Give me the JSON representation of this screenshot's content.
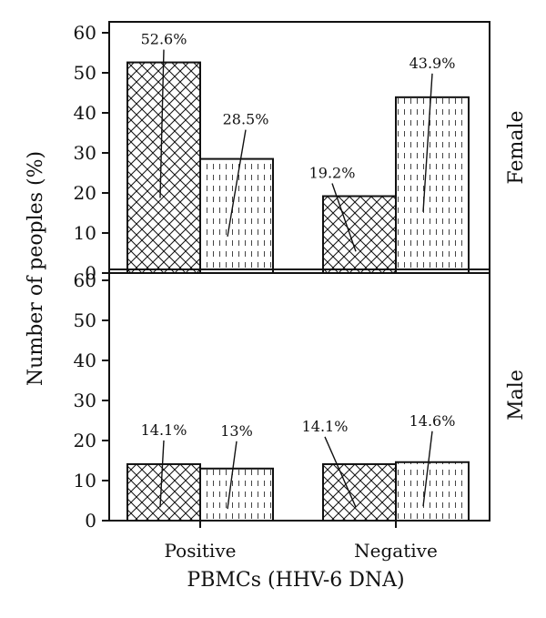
{
  "chart_data": {
    "type": "bar",
    "xlabel": "PBMCs (HHV-6 DNA)",
    "ylabel": "Number of peoples (%)",
    "categories": [
      "Positive",
      "Negative"
    ],
    "ylim": [
      0,
      60
    ],
    "yticks": [
      0,
      10,
      20,
      30,
      40,
      50,
      60
    ],
    "grid": false,
    "panels": [
      {
        "label": "Female",
        "series": [
          {
            "values": [
              52.6,
              19.2
            ],
            "labels": [
              "52.6%",
              "19.2%"
            ],
            "pattern": "crosshatch"
          },
          {
            "values": [
              28.5,
              43.9
            ],
            "labels": [
              "28.5%",
              "43.9%"
            ],
            "pattern": "dashed-vertical"
          }
        ]
      },
      {
        "label": "Male",
        "series": [
          {
            "values": [
              14.1,
              14.1
            ],
            "labels": [
              "14.1%",
              "14.1%"
            ],
            "pattern": "crosshatch"
          },
          {
            "values": [
              13,
              14.6
            ],
            "labels": [
              "13%",
              "14.6%"
            ],
            "pattern": "dashed-vertical"
          }
        ]
      }
    ]
  }
}
